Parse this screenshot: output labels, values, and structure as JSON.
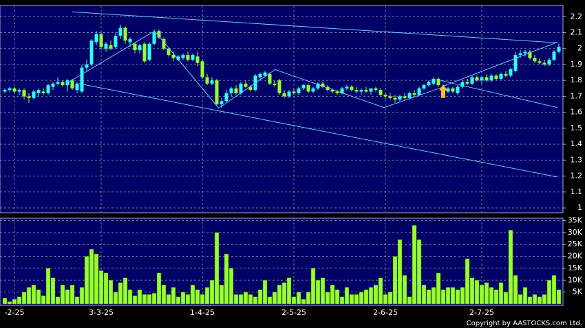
{
  "chart_data": {
    "type": "candlestick",
    "up_color": "#33ffff",
    "down_color": "#99ff33",
    "background": "#000066",
    "grid": true,
    "categories": [
      null,
      null,
      "-2-25",
      null,
      null,
      null,
      null,
      null,
      null,
      null,
      null,
      null,
      null,
      null,
      null,
      null,
      null,
      null,
      null,
      null,
      "3-3-25",
      null,
      null,
      null,
      null,
      null,
      null,
      null,
      null,
      null,
      null,
      null,
      null,
      null,
      null,
      null,
      null,
      null,
      null,
      null,
      null,
      "1-4-25",
      null,
      null,
      null,
      null,
      null,
      null,
      null,
      null,
      null,
      null,
      null,
      null,
      null,
      null,
      null,
      null,
      null,
      null,
      "2-5-25",
      null,
      null,
      null,
      null,
      null,
      null,
      null,
      null,
      null,
      null,
      null,
      null,
      null,
      null,
      null,
      null,
      null,
      null,
      "2-6-25",
      null,
      null,
      null,
      null,
      null,
      null,
      null,
      null,
      null,
      null,
      null,
      null,
      null,
      null,
      null,
      null,
      null,
      null,
      null,
      "2-7-25",
      null,
      null,
      null,
      null,
      null,
      null,
      null,
      null,
      null,
      null,
      null,
      null,
      null,
      null,
      null
    ],
    "ohlc": [
      [
        1.73,
        1.75,
        1.72,
        1.74
      ],
      [
        1.74,
        1.76,
        1.73,
        1.75
      ],
      [
        1.75,
        1.76,
        1.72,
        1.73
      ],
      [
        1.73,
        1.75,
        1.71,
        1.74
      ],
      [
        1.74,
        1.75,
        1.68,
        1.7
      ],
      [
        1.7,
        1.72,
        1.66,
        1.69
      ],
      [
        1.69,
        1.74,
        1.68,
        1.73
      ],
      [
        1.72,
        1.75,
        1.7,
        1.74
      ],
      [
        1.73,
        1.75,
        1.71,
        1.72
      ],
      [
        1.72,
        1.78,
        1.71,
        1.77
      ],
      [
        1.76,
        1.79,
        1.74,
        1.78
      ],
      [
        1.78,
        1.82,
        1.77,
        1.79
      ],
      [
        1.79,
        1.8,
        1.76,
        1.77
      ],
      [
        1.77,
        1.81,
        1.73,
        1.8
      ],
      [
        1.8,
        1.81,
        1.74,
        1.75
      ],
      [
        1.74,
        1.79,
        1.72,
        1.78
      ],
      [
        1.73,
        1.9,
        1.72,
        1.88
      ],
      [
        1.88,
        1.93,
        1.86,
        1.9
      ],
      [
        1.9,
        2.06,
        1.89,
        2.05
      ],
      [
        2.04,
        2.11,
        2.02,
        2.09
      ],
      [
        2.09,
        2.1,
        1.99,
        2.01
      ],
      [
        2.0,
        2.04,
        1.98,
        2.03
      ],
      [
        2.02,
        2.05,
        1.99,
        2.0
      ],
      [
        2.01,
        2.1,
        2.0,
        2.08
      ],
      [
        2.08,
        2.15,
        2.06,
        2.13
      ],
      [
        2.13,
        2.14,
        2.03,
        2.05
      ],
      [
        2.04,
        2.07,
        2.01,
        2.06
      ],
      [
        2.03,
        2.04,
        1.97,
        1.99
      ],
      [
        1.99,
        2.03,
        1.97,
        2.02
      ],
      [
        2.03,
        2.04,
        1.91,
        1.92
      ],
      [
        1.93,
        2.04,
        1.92,
        2.03
      ],
      [
        2.03,
        2.12,
        2.02,
        2.1
      ],
      [
        2.11,
        2.12,
        2.06,
        2.07
      ],
      [
        2.06,
        2.07,
        1.99,
        2.0
      ],
      [
        2.0,
        2.01,
        1.95,
        1.96
      ],
      [
        1.96,
        1.98,
        1.92,
        1.94
      ],
      [
        1.93,
        1.96,
        1.92,
        1.95
      ],
      [
        1.94,
        1.97,
        1.93,
        1.96
      ],
      [
        1.96,
        1.98,
        1.92,
        1.93
      ],
      [
        1.93,
        1.97,
        1.92,
        1.96
      ],
      [
        1.95,
        1.98,
        1.89,
        1.91
      ],
      [
        1.92,
        1.93,
        1.81,
        1.82
      ],
      [
        1.82,
        1.84,
        1.77,
        1.78
      ],
      [
        1.78,
        1.82,
        1.77,
        1.8
      ],
      [
        1.8,
        1.81,
        1.64,
        1.65
      ],
      [
        1.65,
        1.69,
        1.63,
        1.67
      ],
      [
        1.67,
        1.74,
        1.66,
        1.72
      ],
      [
        1.72,
        1.76,
        1.7,
        1.75
      ],
      [
        1.75,
        1.77,
        1.71,
        1.72
      ],
      [
        1.72,
        1.79,
        1.71,
        1.78
      ],
      [
        1.78,
        1.8,
        1.75,
        1.76
      ],
      [
        1.76,
        1.77,
        1.73,
        1.74
      ],
      [
        1.74,
        1.84,
        1.73,
        1.83
      ],
      [
        1.82,
        1.85,
        1.8,
        1.84
      ],
      [
        1.83,
        1.86,
        1.82,
        1.85
      ],
      [
        1.84,
        1.85,
        1.77,
        1.78
      ],
      [
        1.78,
        1.8,
        1.76,
        1.77
      ],
      [
        1.8,
        1.81,
        1.71,
        1.72
      ],
      [
        1.72,
        1.74,
        1.69,
        1.7
      ],
      [
        1.7,
        1.74,
        1.69,
        1.73
      ],
      [
        1.73,
        1.75,
        1.71,
        1.72
      ],
      [
        1.72,
        1.76,
        1.71,
        1.75
      ],
      [
        1.75,
        1.78,
        1.74,
        1.77
      ],
      [
        1.77,
        1.78,
        1.72,
        1.73
      ],
      [
        1.73,
        1.76,
        1.72,
        1.75
      ],
      [
        1.75,
        1.79,
        1.74,
        1.78
      ],
      [
        1.78,
        1.79,
        1.75,
        1.76
      ],
      [
        1.76,
        1.77,
        1.73,
        1.74
      ],
      [
        1.74,
        1.75,
        1.72,
        1.73
      ],
      [
        1.73,
        1.74,
        1.71,
        1.72
      ],
      [
        1.72,
        1.76,
        1.71,
        1.75
      ],
      [
        1.75,
        1.77,
        1.74,
        1.76
      ],
      [
        1.76,
        1.77,
        1.73,
        1.74
      ],
      [
        1.74,
        1.76,
        1.72,
        1.73
      ],
      [
        1.73,
        1.75,
        1.71,
        1.74
      ],
      [
        1.74,
        1.76,
        1.72,
        1.73
      ],
      [
        1.73,
        1.75,
        1.71,
        1.75
      ],
      [
        1.75,
        1.76,
        1.73,
        1.74
      ],
      [
        1.74,
        1.75,
        1.7,
        1.71
      ],
      [
        1.71,
        1.72,
        1.68,
        1.7
      ],
      [
        1.7,
        1.72,
        1.68,
        1.69
      ],
      [
        1.69,
        1.71,
        1.66,
        1.68
      ],
      [
        1.68,
        1.71,
        1.67,
        1.7
      ],
      [
        1.7,
        1.72,
        1.68,
        1.69
      ],
      [
        1.69,
        1.73,
        1.68,
        1.72
      ],
      [
        1.72,
        1.74,
        1.7,
        1.71
      ],
      [
        1.71,
        1.76,
        1.7,
        1.75
      ],
      [
        1.75,
        1.78,
        1.74,
        1.77
      ],
      [
        1.77,
        1.8,
        1.76,
        1.79
      ],
      [
        1.78,
        1.82,
        1.77,
        1.81
      ],
      [
        1.81,
        1.82,
        1.76,
        1.77
      ],
      [
        1.76,
        1.77,
        1.71,
        1.73
      ],
      [
        1.73,
        1.76,
        1.72,
        1.75
      ],
      [
        1.75,
        1.76,
        1.72,
        1.73
      ],
      [
        1.72,
        1.77,
        1.71,
        1.76
      ],
      [
        1.76,
        1.8,
        1.75,
        1.79
      ],
      [
        1.79,
        1.81,
        1.77,
        1.78
      ],
      [
        1.78,
        1.83,
        1.77,
        1.82
      ],
      [
        1.82,
        1.83,
        1.79,
        1.8
      ],
      [
        1.8,
        1.83,
        1.78,
        1.82
      ],
      [
        1.82,
        1.84,
        1.79,
        1.8
      ],
      [
        1.8,
        1.84,
        1.79,
        1.83
      ],
      [
        1.83,
        1.84,
        1.8,
        1.81
      ],
      [
        1.81,
        1.85,
        1.8,
        1.84
      ],
      [
        1.84,
        1.86,
        1.82,
        1.83
      ],
      [
        1.83,
        1.88,
        1.82,
        1.87
      ],
      [
        1.86,
        1.98,
        1.85,
        1.96
      ],
      [
        1.96,
        1.99,
        1.94,
        1.97
      ],
      [
        1.97,
        1.99,
        1.95,
        1.98
      ],
      [
        1.98,
        1.99,
        1.93,
        1.94
      ],
      [
        1.94,
        1.96,
        1.91,
        1.92
      ],
      [
        1.92,
        1.94,
        1.9,
        1.91
      ],
      [
        1.91,
        1.93,
        1.89,
        1.9
      ],
      [
        1.9,
        1.94,
        1.89,
        1.93
      ],
      [
        1.93,
        1.99,
        1.92,
        1.98
      ],
      [
        1.98,
        2.03,
        1.97,
        2.01
      ]
    ],
    "ylim": [
      0.97,
      2.27
    ],
    "yticks": [
      1,
      1.1,
      1.2,
      1.3,
      1.4,
      1.5,
      1.6,
      1.7,
      1.8,
      1.9,
      2,
      2.1,
      2.2
    ],
    "lines": [
      {
        "color": "#66ccff",
        "points": [
          [
            14,
            2.23
          ],
          [
            114.7,
            2.036
          ]
        ]
      },
      {
        "color": "#66ccff",
        "points": [
          [
            15.4,
            1.78
          ],
          [
            114.7,
            1.194
          ]
        ]
      },
      {
        "color": "#66ccff",
        "points": [
          [
            90.4,
            1.8
          ],
          [
            114.7,
            1.63
          ]
        ]
      },
      {
        "color": "#66ccff",
        "points": [
          [
            91,
            1.764
          ],
          [
            114.7,
            2.04
          ]
        ]
      },
      {
        "color": "#66ccff",
        "points": [
          [
            13.3,
            1.79
          ],
          [
            31.1,
            2.11
          ],
          [
            44.4,
            1.626
          ],
          [
            56.1,
            1.868
          ],
          [
            78.7,
            1.63
          ],
          [
            91.1,
            1.76
          ]
        ]
      }
    ],
    "marker": {
      "x": 91,
      "y": 1.69,
      "color": "#ffbb33"
    },
    "volume": {
      "color": "#99ff33",
      "values": [
        2500,
        1000,
        2000,
        3000,
        5000,
        7000,
        8000,
        6000,
        3500,
        15000,
        11000,
        3000,
        8000,
        6000,
        8000,
        3000,
        7000,
        20000,
        23000,
        21000,
        14000,
        13000,
        10000,
        5000,
        9000,
        11000,
        6000,
        3500,
        6000,
        4000,
        4000,
        4500,
        13000,
        8000,
        4000,
        7000,
        3000,
        5000,
        4000,
        8000,
        6000,
        4000,
        7000,
        10000,
        30000,
        8000,
        21000,
        15000,
        4000,
        4000,
        5000,
        4000,
        3000,
        6000,
        10000,
        3000,
        5000,
        8000,
        9000,
        11000,
        3000,
        5000,
        2000,
        5000,
        15000,
        10000,
        11000,
        5000,
        8000,
        6000,
        3000,
        7000,
        4000,
        4000,
        5000,
        6000,
        7000,
        8000,
        11000,
        4000,
        5000,
        20000,
        27000,
        12000,
        3000,
        33000,
        27000,
        8000,
        6000,
        7000,
        13000,
        6000,
        7000,
        7000,
        6000,
        7000,
        19000,
        11000,
        10000,
        8000,
        9000,
        7000,
        6000,
        9000,
        5000,
        31000,
        12000,
        4000,
        7000,
        3000,
        4000,
        3000,
        4000,
        10000,
        12000,
        6000
      ],
      "ylim": [
        0,
        36000
      ],
      "yticks": [
        {
          "value": 5000,
          "label": "5K"
        },
        {
          "value": 10000,
          "label": "10K"
        },
        {
          "value": 15000,
          "label": "15K"
        },
        {
          "value": 20000,
          "label": "20K"
        },
        {
          "value": 25000,
          "label": "25K"
        },
        {
          "value": 30000,
          "label": "30K"
        },
        {
          "value": 35000,
          "label": "35K"
        }
      ]
    },
    "footer": "Copyright by AASTOCKS.com Ltd."
  }
}
